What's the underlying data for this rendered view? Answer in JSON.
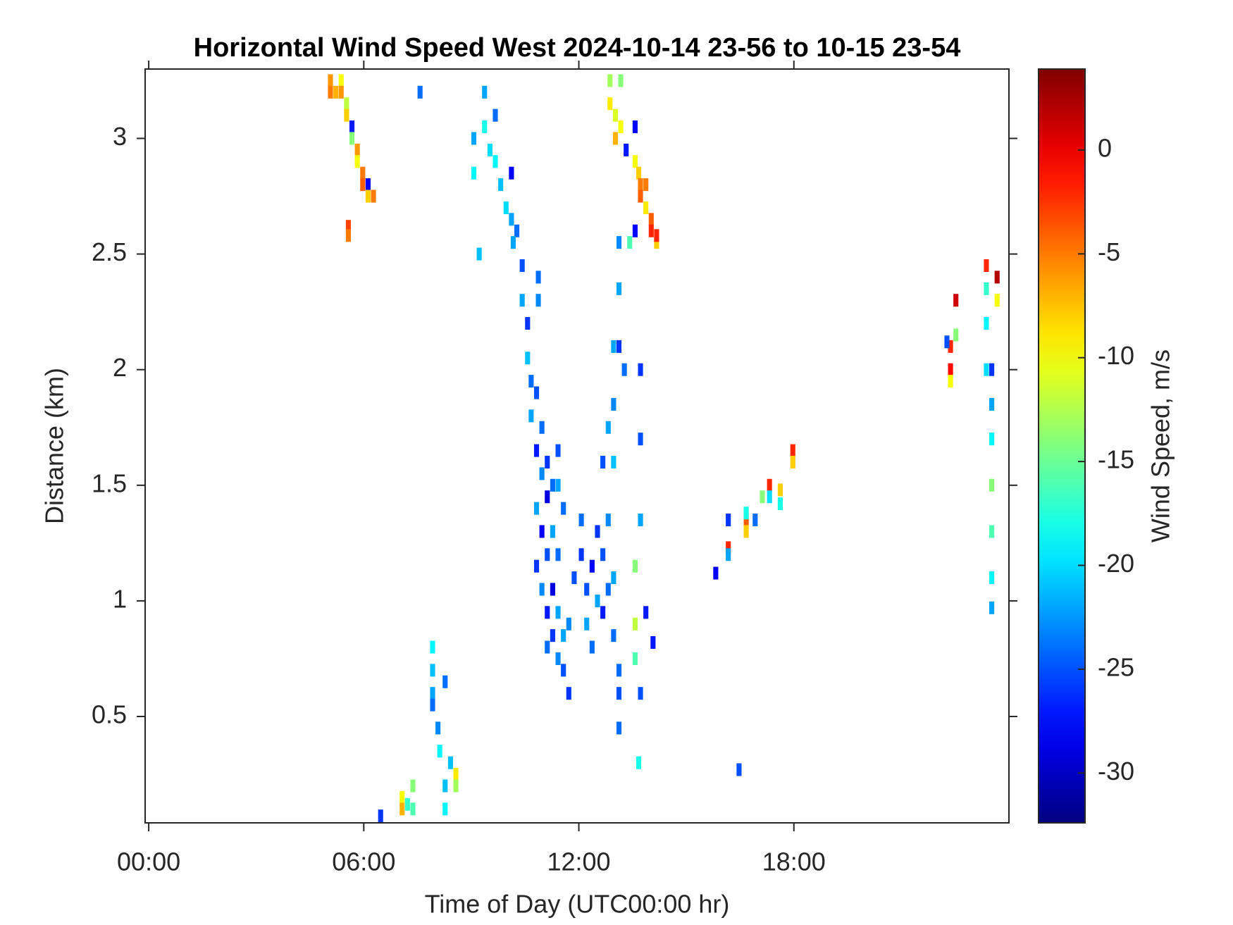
{
  "chart_data": {
    "type": "heatmap",
    "title": "Horizontal Wind Speed West 2024-10-14 23-56 to 10-15 23-54",
    "x_label": "Time of Day (UTC00:00 hr)",
    "y_label": "Distance (km)",
    "colorbar_label": "Wind Speed, m/s",
    "colormap": "jet",
    "x": [
      5.0,
      5.0,
      5.15,
      5.3,
      5.3,
      5.45,
      5.45,
      5.6,
      5.6,
      5.75,
      5.75,
      5.9,
      5.9,
      6.05,
      6.05,
      6.2,
      5.5,
      5.5,
      7.5,
      9.0,
      9.0,
      9.3,
      9.3,
      9.45,
      9.6,
      9.6,
      9.75,
      9.9,
      10.05,
      10.05,
      9.15,
      10.2,
      10.35,
      10.35,
      10.5,
      10.5,
      10.6,
      10.6,
      10.75,
      10.9,
      10.75,
      10.9,
      11.05,
      11.05,
      11.2,
      10.75,
      10.9,
      11.05,
      11.2,
      10.75,
      10.9,
      11.05,
      11.2,
      11.35,
      11.35,
      11.05,
      11.2,
      11.35,
      11.5,
      11.5,
      11.65,
      11.65,
      11.35,
      11.35,
      11.5,
      11.8,
      10.1,
      10.8,
      10.8,
      12.0,
      12.0,
      12.15,
      12.15,
      12.3,
      12.3,
      12.45,
      12.45,
      12.6,
      12.6,
      12.75,
      12.75,
      12.9,
      12.9,
      13.05,
      13.05,
      12.6,
      12.9,
      12.9,
      12.75,
      13.05,
      13.05,
      13.05,
      12.9,
      13.2,
      13.5,
      13.5,
      13.5,
      13.65,
      13.65,
      13.65,
      13.65,
      13.8,
      14.0,
      13.6,
      13.05,
      12.8,
      12.8,
      12.95,
      12.95,
      13.1,
      13.1,
      13.25,
      13.5,
      13.5,
      13.6,
      13.65,
      13.65,
      13.8,
      13.8,
      13.95,
      13.95,
      14.1,
      14.1,
      13.5,
      13.35,
      6.4,
      7.0,
      7.0,
      7.15,
      7.3,
      7.3,
      7.85,
      7.85,
      7.85,
      7.85,
      8.0,
      8.05,
      8.2,
      8.2,
      8.2,
      8.35,
      8.5,
      8.5,
      15.75,
      16.1,
      16.1,
      16.1,
      16.6,
      16.6,
      16.6,
      16.85,
      17.05,
      17.25,
      17.25,
      17.55,
      17.55,
      17.9,
      17.9,
      16.4,
      22.3,
      22.3,
      22.3,
      22.2,
      22.45,
      22.45,
      23.3,
      23.3,
      23.3,
      23.3,
      23.45,
      23.45,
      23.45,
      23.45,
      23.45,
      23.45,
      23.45,
      23.6,
      23.6
    ],
    "y": [
      3.25,
      3.2,
      3.2,
      3.25,
      3.2,
      3.15,
      3.1,
      3.05,
      3.0,
      2.95,
      2.9,
      2.85,
      2.8,
      2.8,
      2.75,
      2.75,
      2.62,
      2.58,
      3.2,
      3.0,
      2.85,
      3.2,
      3.05,
      2.95,
      3.1,
      2.9,
      2.8,
      2.7,
      2.85,
      2.65,
      2.5,
      2.6,
      2.45,
      2.3,
      2.2,
      2.05,
      1.95,
      1.8,
      1.9,
      1.75,
      1.65,
      1.55,
      1.6,
      1.45,
      1.5,
      1.4,
      1.3,
      1.2,
      1.3,
      1.15,
      1.05,
      0.95,
      1.05,
      1.2,
      0.95,
      0.8,
      0.85,
      0.75,
      0.7,
      0.85,
      0.6,
      0.9,
      1.5,
      1.65,
      1.4,
      1.1,
      2.55,
      2.4,
      2.3,
      1.35,
      1.2,
      1.05,
      0.9,
      1.15,
      0.8,
      1.3,
      1.0,
      1.2,
      0.95,
      1.35,
      1.05,
      0.85,
      1.1,
      0.7,
      0.6,
      1.6,
      1.6,
      1.85,
      1.75,
      2.1,
      2.55,
      2.35,
      2.1,
      2.0,
      1.15,
      0.9,
      0.75,
      1.35,
      0.6,
      2.0,
      1.7,
      0.95,
      0.82,
      0.3,
      0.45,
      3.25,
      3.15,
      3.1,
      3.0,
      3.25,
      3.05,
      2.95,
      3.05,
      2.9,
      2.85,
      2.8,
      2.75,
      2.8,
      2.7,
      2.65,
      2.6,
      2.55,
      2.58,
      2.6,
      2.55,
      0.07,
      0.15,
      0.1,
      0.12,
      0.1,
      0.2,
      0.8,
      0.7,
      0.6,
      0.55,
      0.45,
      0.35,
      0.65,
      0.2,
      0.1,
      0.3,
      0.25,
      0.2,
      1.12,
      1.35,
      1.23,
      1.2,
      1.35,
      1.3,
      1.38,
      1.35,
      1.45,
      1.5,
      1.45,
      1.48,
      1.42,
      1.65,
      1.6,
      0.27,
      2.1,
      2.0,
      1.95,
      2.12,
      2.3,
      2.15,
      2.45,
      2.35,
      2.2,
      2.0,
      2.0,
      1.85,
      1.7,
      1.5,
      1.3,
      1.1,
      0.97,
      2.4,
      2.3
    ],
    "values": [
      -6,
      -5,
      -7,
      -10,
      -6,
      -12,
      -8,
      -27,
      -14,
      -6,
      -10,
      -5,
      -4,
      -28,
      -8,
      -5,
      -3,
      -5,
      -24,
      -22,
      -19,
      -22,
      -18,
      -20,
      -24,
      -19,
      -21,
      -20,
      -28,
      -22,
      -21,
      -24,
      -25,
      -22,
      -26,
      -21,
      -24,
      -22,
      -25,
      -24,
      -27,
      -23,
      -26,
      -29,
      -24,
      -22,
      -28,
      -25,
      -22,
      -26,
      -23,
      -27,
      -29,
      -24,
      -22,
      -24,
      -26,
      -23,
      -25,
      -22,
      -26,
      -23,
      -22,
      -25,
      -24,
      -25,
      -22,
      -24,
      -23,
      -24,
      -26,
      -25,
      -22,
      -28,
      -24,
      -26,
      -22,
      -25,
      -27,
      -23,
      -24,
      -24,
      -22,
      -24,
      -25,
      -25,
      -21,
      -23,
      -22,
      -26,
      -23,
      -22,
      -22,
      -24,
      -14,
      -12,
      -16,
      -22,
      -25,
      -26,
      -25,
      -27,
      -27,
      -18,
      -24,
      -13,
      -9,
      -11,
      -7,
      -14,
      -10,
      -27,
      -28,
      -10,
      -8,
      -5,
      -4,
      -5,
      -9,
      -4,
      -2,
      -8,
      -2,
      -28,
      -16,
      -26,
      -10,
      -7,
      -17,
      -16,
      -14,
      -19,
      -21,
      -22,
      -24,
      -23,
      -19,
      -24,
      -21,
      -19,
      -21,
      -9,
      -13,
      -28,
      -26,
      -2,
      -22,
      -4,
      -8,
      -18,
      -24,
      -14,
      -2,
      -20,
      -8,
      -18,
      -2,
      -8,
      -25,
      -2,
      -1,
      -10,
      -25,
      1,
      -14,
      -2,
      -17,
      -19,
      -20,
      -26,
      -22,
      -19,
      -14,
      -16,
      -19,
      -22,
      2,
      -10
    ],
    "xlim": [
      -0.1,
      24
    ],
    "ylim": [
      0.04,
      3.3
    ],
    "xticks": [
      {
        "value": 0,
        "label": "00:00"
      },
      {
        "value": 6,
        "label": "06:00"
      },
      {
        "value": 12,
        "label": "12:00"
      },
      {
        "value": 18,
        "label": "18:00"
      }
    ],
    "yticks": [
      0.5,
      1,
      1.5,
      2,
      2.5,
      3
    ],
    "clim": [
      -32.4,
      3.9
    ],
    "cticks": [
      -30,
      -25,
      -20,
      -15,
      -10,
      -5,
      0
    ]
  }
}
